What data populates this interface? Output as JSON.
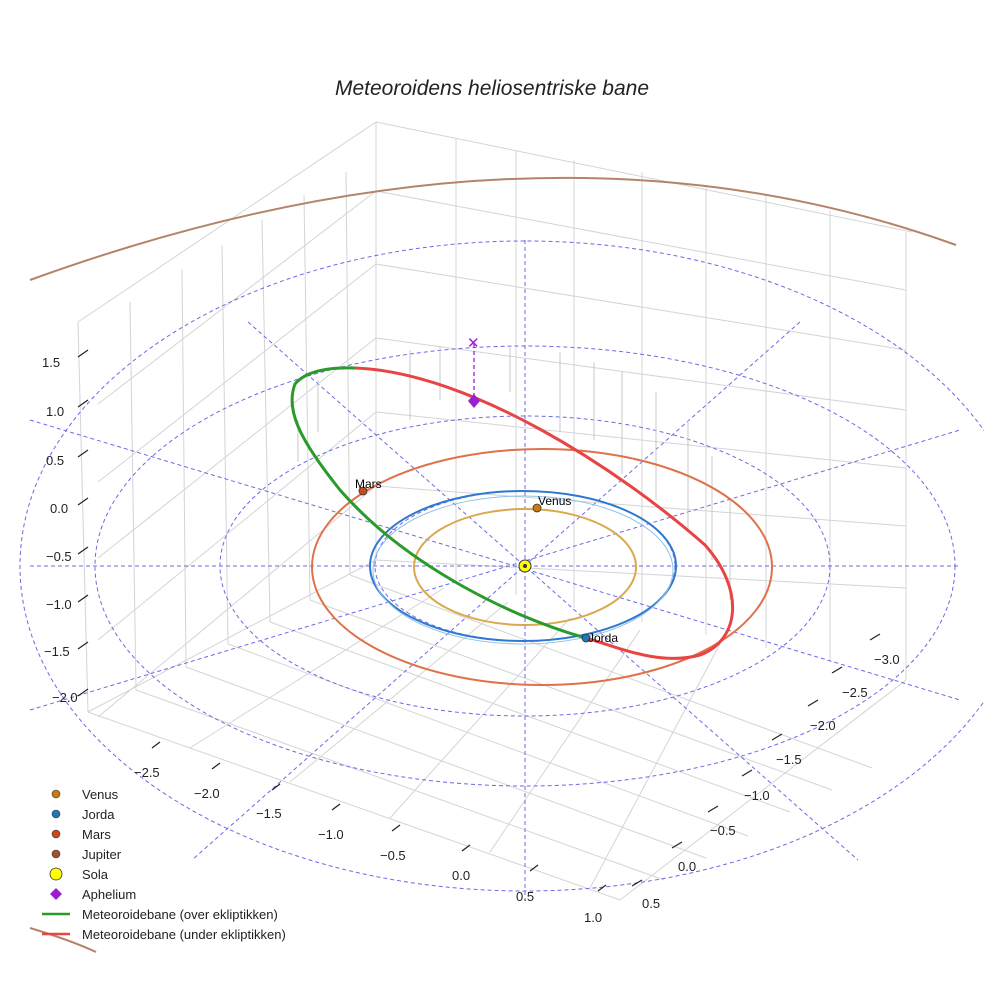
{
  "chart_data": {
    "type": "scatter",
    "projection": "3d",
    "title": "Meteoroidens heliosentriske bane",
    "axes": {
      "x_ticks": [
        "−2.5",
        "−2.0",
        "−1.5",
        "−1.0",
        "−0.5",
        "0.0",
        "0.5",
        "1.0"
      ],
      "y_ticks": [
        "−3.0",
        "−2.5",
        "−2.0",
        "−1.5",
        "−1.0",
        "−0.5",
        "0.0",
        "0.5"
      ],
      "z_ticks": [
        "1.5",
        "1.0",
        "0.5",
        "0.0",
        "−0.5",
        "−1.0",
        "−1.5",
        "−2.0"
      ],
      "grid": true
    },
    "series": [
      {
        "name": "Venus",
        "kind": "orbit",
        "color": "#d9a94e",
        "radius_au": 0.72
      },
      {
        "name": "Jorda",
        "kind": "orbit",
        "color": "#2f78d1",
        "radius_au": 1.0
      },
      {
        "name": "Mars",
        "kind": "orbit",
        "color": "#e0714a",
        "radius_au": 1.52
      },
      {
        "name": "Jupiter",
        "kind": "orbit",
        "color": "#b5836a",
        "radius_au": 5.2
      },
      {
        "name": "Meteoroidebane (over ekliptikken)",
        "kind": "trajectory",
        "color": "#2a9a2a"
      },
      {
        "name": "Meteoroidebane (under ekliptikken)",
        "kind": "trajectory",
        "color": "#e84444"
      }
    ],
    "points": [
      {
        "name": "Venus",
        "label": "Venus",
        "color": "#cc7a10"
      },
      {
        "name": "Jorda",
        "label": "Jorda",
        "color": "#1f77b4"
      },
      {
        "name": "Mars",
        "label": "Mars",
        "color": "#c9481c"
      },
      {
        "name": "Sola",
        "label": "",
        "color": "#ffff00"
      },
      {
        "name": "Aphelium",
        "label": "",
        "color": "#9b1fd0"
      }
    ],
    "legend": {
      "position": "bottom-left",
      "entries": [
        {
          "label": "Venus",
          "marker": "dot",
          "color": "#cc7a10"
        },
        {
          "label": "Jorda",
          "marker": "dot",
          "color": "#1f77b4"
        },
        {
          "label": "Mars",
          "marker": "dot",
          "color": "#c9481c"
        },
        {
          "label": "Jupiter",
          "marker": "dot",
          "color": "#a0522d"
        },
        {
          "label": "Sola",
          "marker": "sun",
          "color": "#ffff00"
        },
        {
          "label": "Aphelium",
          "marker": "diamond",
          "color": "#9b1fd0"
        },
        {
          "label": "Meteoroidebane (over ekliptikken)",
          "marker": "line",
          "color": "#2a9a2a"
        },
        {
          "label": "Meteoroidebane (under ekliptikken)",
          "marker": "line",
          "color": "#e84444"
        }
      ]
    }
  }
}
